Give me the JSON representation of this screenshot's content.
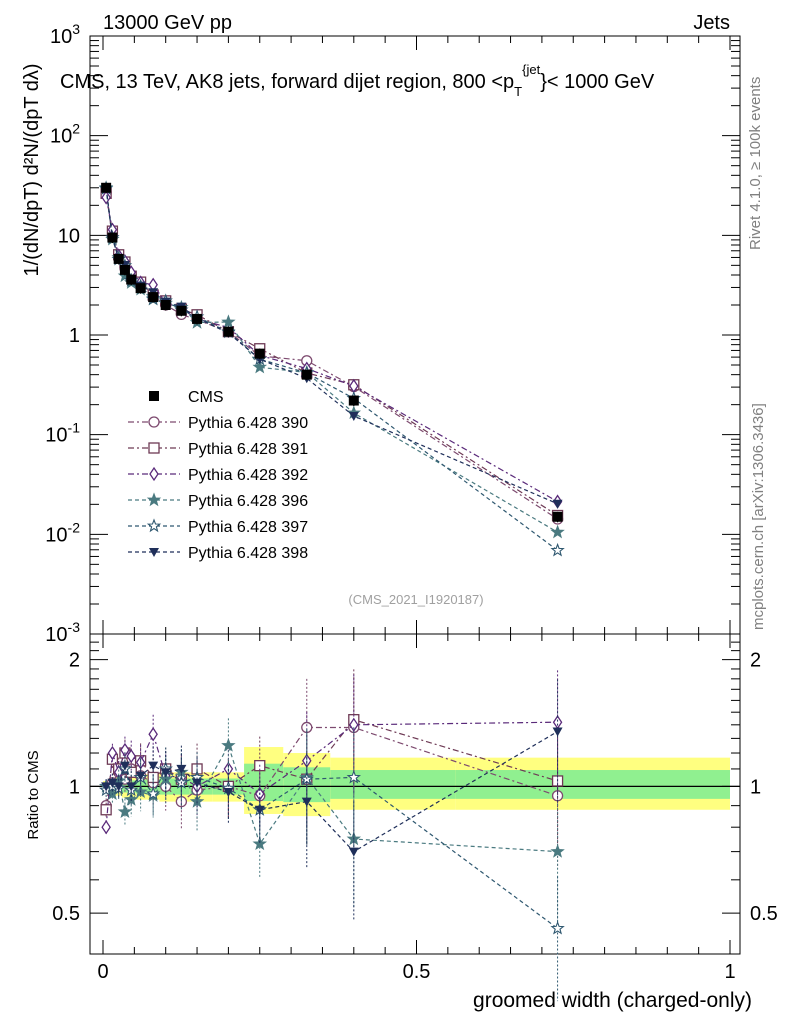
{
  "header": {
    "left": "13000 GeV pp",
    "right": "Jets",
    "title": "CMS, 13 TeV, AK8 jets, forward dijet region, 800 <p",
    "title_sup": "{jet",
    "title_sub": "T",
    "title_tail": "}< 1000 GeV"
  },
  "side_labels": {
    "rivet": "Rivet 4.1.0, ≥ 100k events",
    "mcplots": "mcplots.cern.ch [arXiv:1306.3436]"
  },
  "watermark": "(CMS_2021_I1920187)",
  "axes": {
    "ylabel_main": "1/(dN/dpT) d²N/(dpT dλ)",
    "ylabel_ratio": "Ratio to CMS",
    "xlabel": "groomed width (charged-only)",
    "x_ticks": [
      "0",
      "0.5",
      "1"
    ],
    "ratio_ticks": [
      "0.5",
      "1",
      "2"
    ]
  },
  "chart_data": {
    "type": "scatter",
    "x_range": [
      0,
      1
    ],
    "y_range_main": [
      0.001,
      1000
    ],
    "y_scale_main": "log",
    "y_range_ratio": [
      0.4,
      2.3
    ],
    "y_scale_ratio": "log",
    "legend_position": "center-left",
    "x": [
      0.005,
      0.015,
      0.025,
      0.035,
      0.045,
      0.06,
      0.08,
      0.1,
      0.125,
      0.15,
      0.2,
      0.25,
      0.325,
      0.4,
      0.725
    ],
    "data": {
      "name": "CMS",
      "values": [
        30,
        9.5,
        5.8,
        4.5,
        3.6,
        2.95,
        2.4,
        2.0,
        1.75,
        1.45,
        1.08,
        0.65,
        0.4,
        0.22,
        0.015
      ],
      "band_low": [
        0.97,
        0.96,
        0.95,
        0.94,
        0.94,
        0.93,
        0.93,
        0.92,
        0.92,
        0.92,
        0.92,
        0.86,
        0.85,
        0.88,
        0.88
      ],
      "band_high": [
        1.03,
        1.04,
        1.05,
        1.06,
        1.06,
        1.07,
        1.07,
        1.08,
        1.08,
        1.08,
        1.08,
        1.24,
        1.2,
        1.17,
        1.17
      ]
    },
    "series": [
      {
        "name": "Pythia 6.428 390",
        "color": "#7d4a6f",
        "marker": "circle",
        "dash": "6,3,2,3",
        "ratio": [
          0.9,
          1.02,
          1.08,
          1.04,
          1.1,
          1.06,
          1.02,
          1.0,
          0.92,
          0.98,
          1.0,
          0.95,
          1.38,
          1.38,
          0.95
        ]
      },
      {
        "name": "Pythia 6.428 391",
        "color": "#6e3a55",
        "marker": "square",
        "dash": "6,3,2,3",
        "ratio": [
          0.88,
          1.16,
          1.1,
          1.2,
          1.08,
          1.15,
          1.05,
          1.1,
          1.04,
          1.1,
          1.0,
          1.12,
          1.04,
          1.44,
          1.03
        ]
      },
      {
        "name": "Pythia 6.428 392",
        "color": "#5a2a7a",
        "marker": "diamond",
        "dash": "6,3,2,3",
        "ratio": [
          0.8,
          1.2,
          1.08,
          1.22,
          1.18,
          1.14,
          1.33,
          1.06,
          1.05,
          1.0,
          1.1,
          0.96,
          1.15,
          1.4,
          1.42
        ]
      },
      {
        "name": "Pythia 6.428 396",
        "color": "#4a7a80",
        "marker": "star",
        "dash": "4,3",
        "ratio": [
          1.0,
          0.96,
          1.03,
          0.87,
          0.93,
          0.97,
          0.95,
          1.04,
          1.08,
          0.92,
          1.25,
          0.73,
          1.05,
          0.75,
          0.7
        ]
      },
      {
        "name": "Pythia 6.428 397",
        "color": "#2f5870",
        "marker": "star-open",
        "dash": "4,3",
        "ratio": [
          0.98,
          1.0,
          0.99,
          1.1,
          0.98,
          1.05,
          0.96,
          1.1,
          1.02,
          1.05,
          0.99,
          0.88,
          1.04,
          1.05,
          0.46
        ]
      },
      {
        "name": "Pythia 6.428 398",
        "color": "#1f2f5a",
        "marker": "triangle-down",
        "dash": "4,3",
        "ratio": [
          1.0,
          1.02,
          1.0,
          1.12,
          1.0,
          1.06,
          1.12,
          1.08,
          1.1,
          1.02,
          0.97,
          0.88,
          0.92,
          0.7,
          1.35
        ]
      }
    ]
  }
}
